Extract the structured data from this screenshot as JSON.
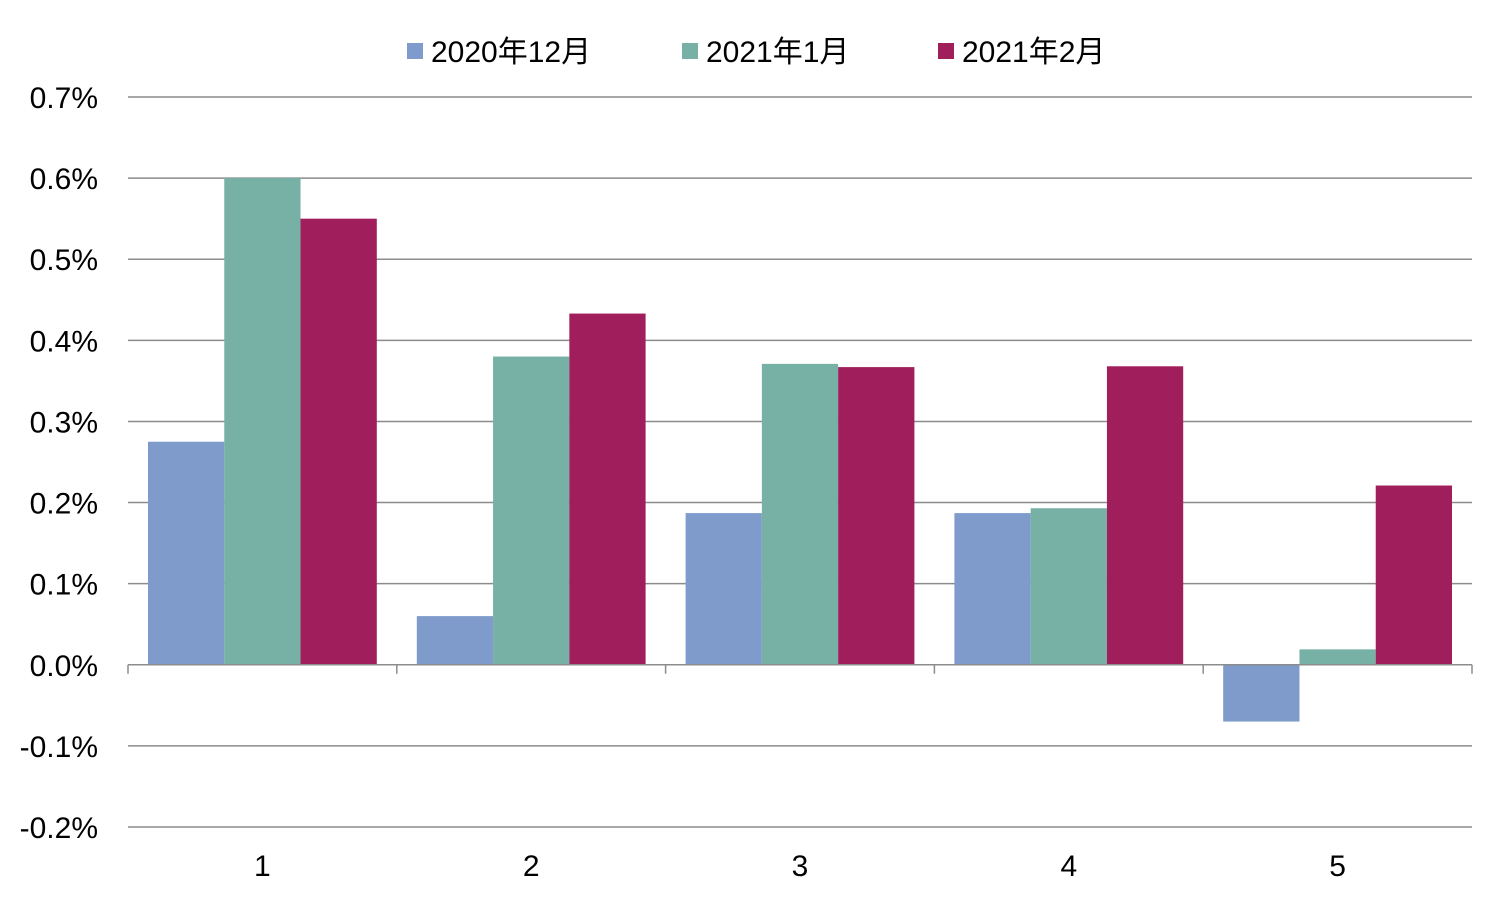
{
  "chart_data": {
    "type": "bar",
    "title": "",
    "xlabel": "",
    "ylabel": "",
    "categories": [
      "1",
      "2",
      "3",
      "4",
      "5"
    ],
    "series": [
      {
        "name": "2020年12月",
        "color": "#7F9BCB",
        "values": [
          0.275,
          0.06,
          0.187,
          0.187,
          -0.07
        ]
      },
      {
        "name": "2021年1月",
        "color": "#77B0A5",
        "values": [
          0.6,
          0.38,
          0.371,
          0.193,
          0.019
        ]
      },
      {
        "name": "2021年2月",
        "color": "#A11E5C",
        "values": [
          0.55,
          0.433,
          0.367,
          0.368,
          0.221
        ]
      }
    ],
    "ylim": [
      -0.2,
      0.7
    ],
    "yticks": [
      -0.2,
      -0.1,
      0.0,
      0.1,
      0.2,
      0.3,
      0.4,
      0.5,
      0.6,
      0.7
    ],
    "ytick_labels": [
      "-0.2%",
      "-0.1%",
      "0.0%",
      "0.1%",
      "0.2%",
      "0.3%",
      "0.4%",
      "0.5%",
      "0.6%",
      "0.7%"
    ],
    "unit": "%",
    "grid": true,
    "legend_position": "top"
  }
}
